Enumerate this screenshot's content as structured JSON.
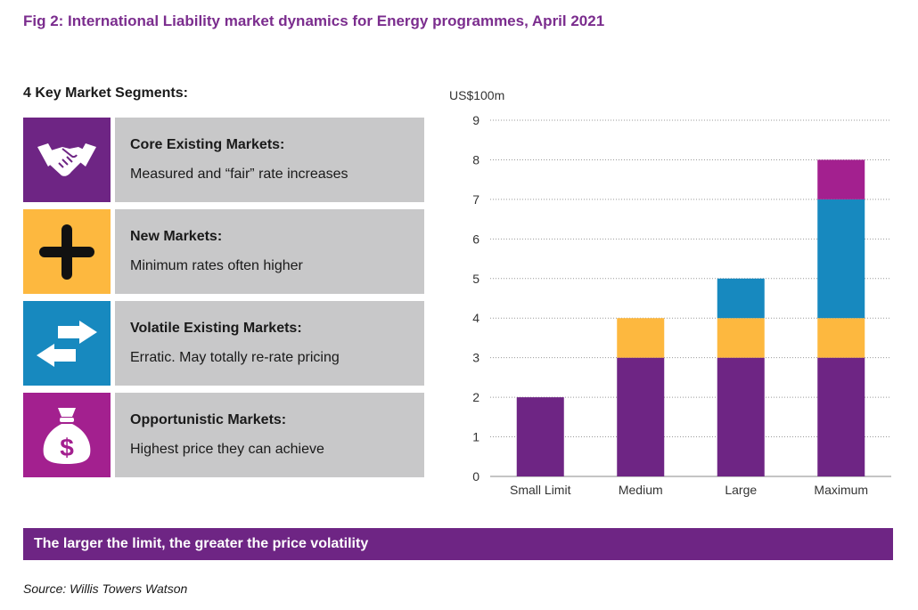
{
  "title": "Fig 2: International Liability market dynamics for Energy programmes, April 2021",
  "segments_heading": "4 Key Market Segments:",
  "segments": [
    {
      "name": "Core Existing Markets:",
      "desc": "Measured and “fair” rate increases",
      "icon": "handshake-icon",
      "color": "#6e2584"
    },
    {
      "name": "New Markets:",
      "desc": "Minimum rates often higher",
      "icon": "plus-icon",
      "color": "#fdb83f"
    },
    {
      "name": "Volatile Existing Markets:",
      "desc": "Erratic. May totally re-rate pricing",
      "icon": "arrows-exchange-icon",
      "color": "#1789bf"
    },
    {
      "name": "Opportunistic Markets:",
      "desc": "Highest price they can achieve",
      "icon": "money-bag-icon",
      "color": "#a3208f"
    }
  ],
  "chart_data": {
    "type": "bar",
    "stacked": true,
    "ylabel": "US$100m",
    "ylim": [
      0,
      9
    ],
    "yticks": [
      "0",
      "1",
      "2",
      "3",
      "4",
      "5",
      "6",
      "7",
      "8",
      "9"
    ],
    "grid": true,
    "categories": [
      "Small Limit",
      "Medium",
      "Large",
      "Maximum"
    ],
    "series": [
      {
        "values": [
          2,
          3,
          3,
          3
        ],
        "color": "#6e2584"
      },
      {
        "values": [
          0,
          1,
          1,
          1
        ],
        "color": "#fdb83f"
      },
      {
        "values": [
          0,
          0,
          1,
          3
        ],
        "color": "#1789bf"
      },
      {
        "values": [
          0,
          0,
          0,
          1
        ],
        "color": "#a3208f"
      }
    ]
  },
  "banner": "The larger the limit, the greater the price volatility",
  "source": "Source: Willis Towers Watson"
}
